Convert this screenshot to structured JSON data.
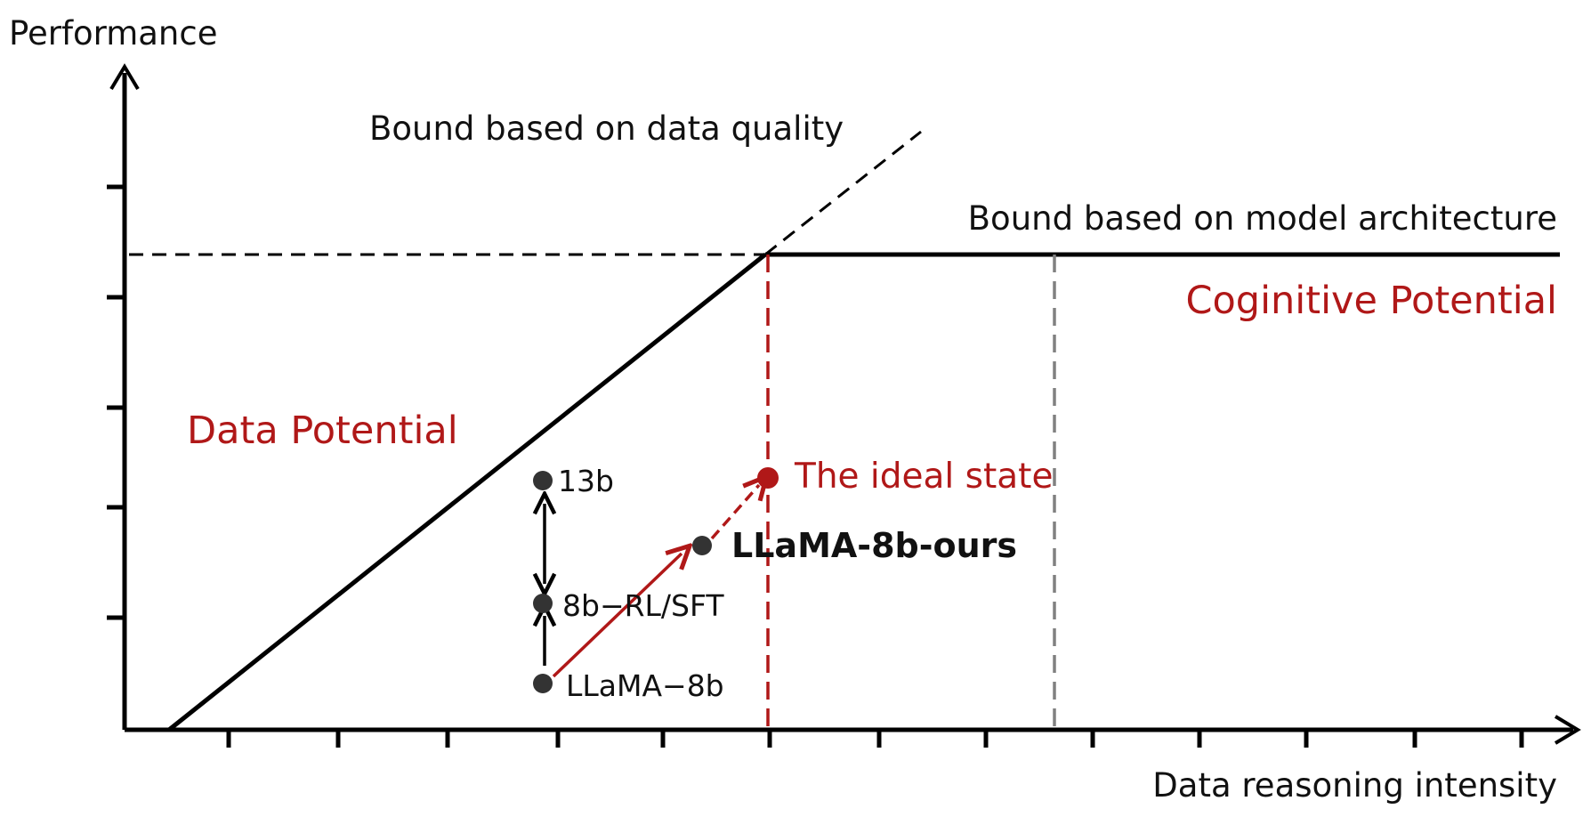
{
  "axes": {
    "y_label": "Performance",
    "x_label": "Data reasoning intensity"
  },
  "bounds": {
    "data_quality": "Bound based on data quality",
    "model_architecture": "Bound based on model architecture"
  },
  "regions": {
    "data_potential": "Data Potential",
    "cognitive_potential": "Coginitive Potential"
  },
  "points": {
    "p13b": "13b",
    "p8b_rl_sft": "8b−RL/SFT",
    "llama_8b": "LLaMA−8b",
    "llama_8b_ours": "LLaMA-8b-ours",
    "ideal_state": "The ideal state"
  },
  "colors": {
    "axis": "#000000",
    "accent_red": "#b01818",
    "point": "#333333",
    "gray_dash": "#808080"
  }
}
